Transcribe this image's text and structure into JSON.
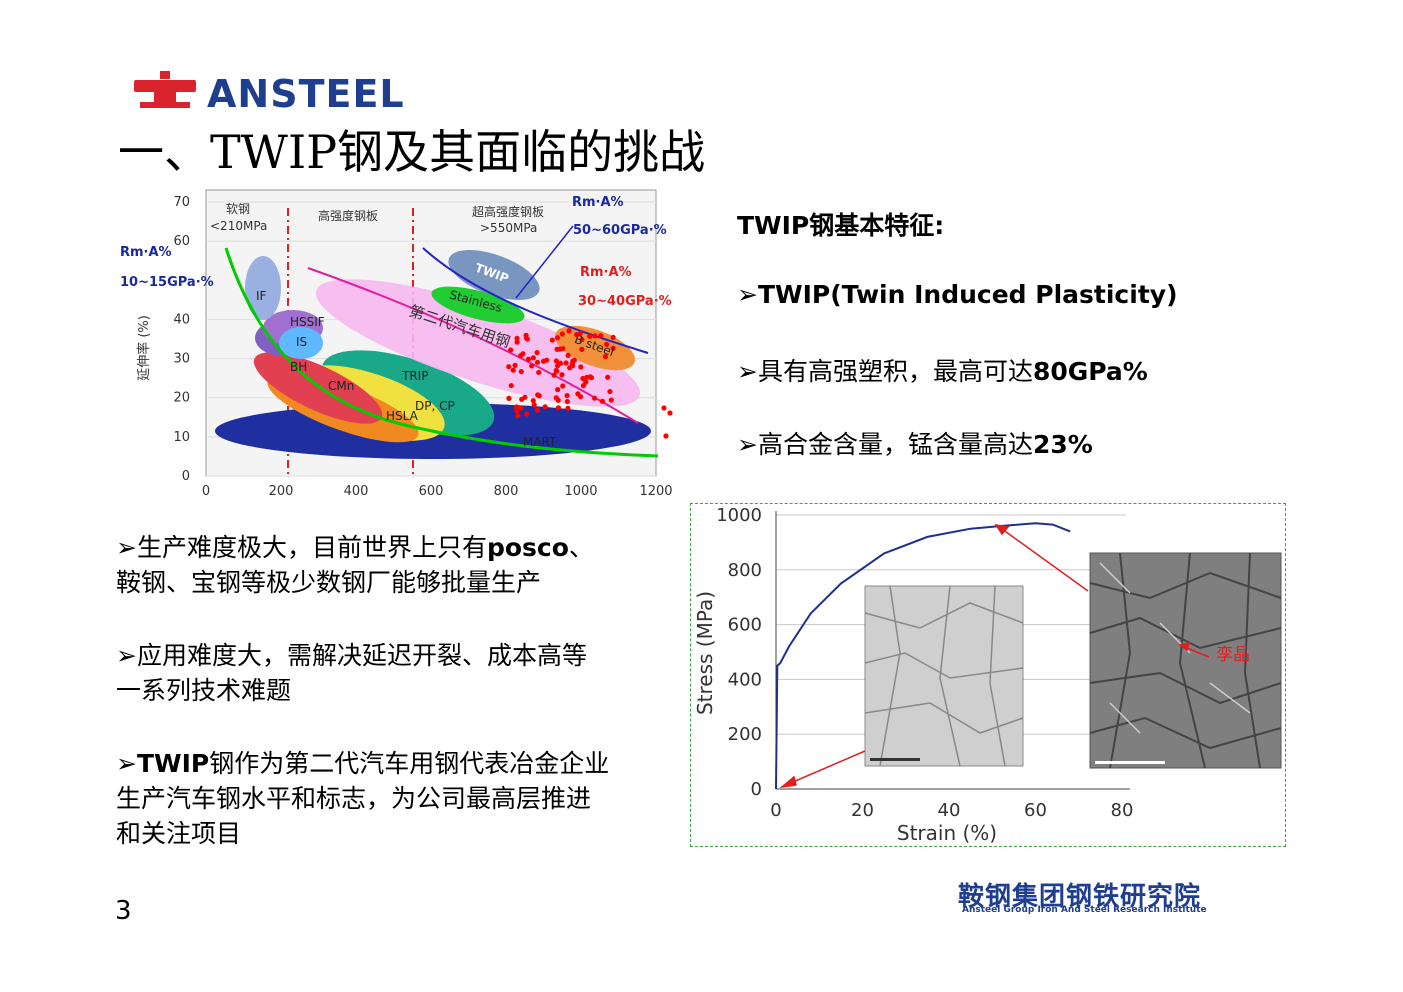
{
  "header": {
    "logo_text": "ANSTEEL",
    "title": "一、TWIP钢及其面临的挑战"
  },
  "features": {
    "heading": "TWIP钢基本特征:",
    "items": [
      {
        "prefix": "➢",
        "text": "TWIP(Twin Induced Plasticity)",
        "bold": true
      },
      {
        "prefix": "➢",
        "text": "具有高强塑积，最高可达",
        "strong": "80GPa%"
      },
      {
        "prefix": "➢",
        "text": "高合金含量，锰含量高达",
        "strong": "23%"
      }
    ]
  },
  "challenges": [
    {
      "line1_a": "➢生产难度极大，目前世界上只有",
      "line1_b": "posco",
      "line1_c": "、",
      "line2": "鞍钢、宝钢等极少数钢厂能够批量生产"
    },
    {
      "line1_a": "➢应用难度大，需解决延迟开裂、成本高等",
      "line2": "一系列技术难题"
    },
    {
      "line1_a": "➢",
      "line1_b": "TWIP",
      "line1_c": "钢作为第二代汽车用钢代表冶金企业",
      "line2": "生产汽车钢水平和标志，为公司最高层推进",
      "line3": "和关注项目"
    }
  ],
  "chart_data": [
    {
      "type": "scatter",
      "title": "",
      "xlabel": "",
      "ylabel": "延伸率 (%)",
      "xlim": [
        0,
        1200
      ],
      "ylim": [
        0,
        70
      ],
      "x_ticks": [
        "0",
        "200",
        "400",
        "600",
        "800",
        "1000",
        "1200"
      ],
      "y_ticks": [
        "0",
        "10",
        "20",
        "30",
        "40",
        "60",
        "70"
      ],
      "region_labels": [
        "软钢",
        "<210MPa",
        "高强度钢板",
        "超高强度钢板",
        ">550MPa"
      ],
      "ellipse_labels": [
        "IF",
        "HSSIF",
        "IS",
        "BH",
        "CMn",
        "TRIP",
        "DP, CP",
        "HSLA",
        "MART",
        "TWIP",
        "Stainless",
        "B steel",
        "第二代汽车用钢"
      ],
      "annotations": [
        {
          "text": "Rm·A%",
          "sub": "10~15GPa·%"
        },
        {
          "text": "Rm·A%",
          "sub": "50~60GPa·%"
        },
        {
          "text": "Rm·A%",
          "sub": "30~40GPa·%"
        }
      ],
      "colors": {
        "first_gen_curve": "#00cc00",
        "third_curve": "#2222cc",
        "points": "#ff0000"
      }
    },
    {
      "type": "line",
      "title": "",
      "xlabel": "Strain (%)",
      "ylabel": "Stress (MPa)",
      "xlim": [
        0,
        80
      ],
      "ylim": [
        0,
        1000
      ],
      "x_ticks": [
        "0",
        "20",
        "40",
        "60",
        "80"
      ],
      "y_ticks": [
        "0",
        "200",
        "400",
        "600",
        "800",
        "1000"
      ],
      "series": [
        {
          "x": [
            0,
            0.3,
            1,
            3,
            8,
            15,
            25,
            35,
            45,
            52,
            56,
            60,
            64,
            68
          ],
          "y": [
            0,
            450,
            460,
            520,
            640,
            750,
            860,
            920,
            950,
            960,
            965,
            970,
            965,
            940
          ]
        }
      ],
      "inset_label": "孪晶",
      "colors": {
        "curve": "#1f2f8f",
        "arrows": "#e02020"
      }
    }
  ],
  "footer": {
    "page_number": "3",
    "institute_cn": "鞍钢集团钢铁研究院",
    "institute_en": "Ansteel Group Iron And Steel Research Institute"
  }
}
